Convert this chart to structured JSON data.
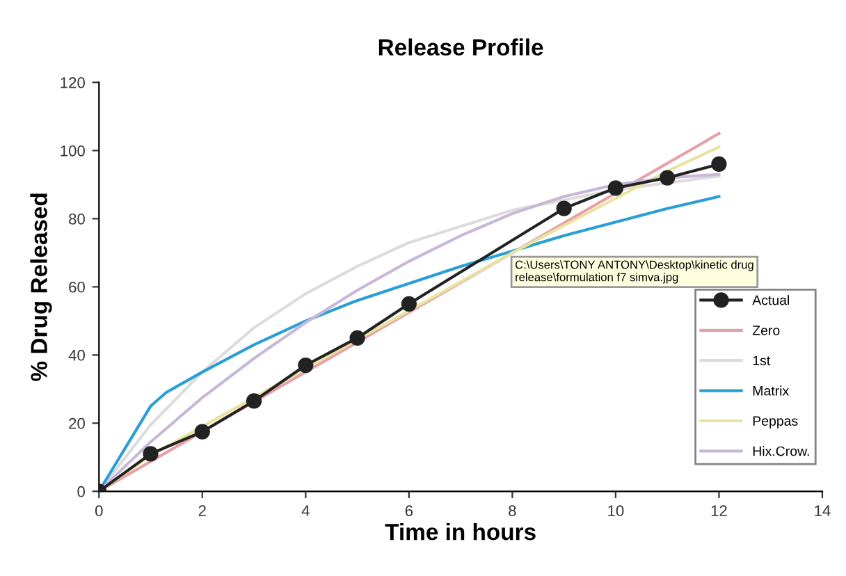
{
  "chart_data": {
    "type": "line",
    "title": "Release Profile",
    "xlabel": "Time in hours",
    "ylabel": "% Drug Released",
    "xlim": [
      0,
      14
    ],
    "xticks": [
      0,
      2,
      4,
      6,
      8,
      10,
      12,
      14
    ],
    "ylim": [
      0,
      120
    ],
    "yticks": [
      0,
      20,
      40,
      60,
      80,
      100,
      120
    ],
    "grid": false,
    "legend": "right",
    "line_style": "solid",
    "annotations": [
      "C:\\Users\\TONY ANTONY\\Desktop\\kinetic drug release\\formulation f7 simva.jpg"
    ],
    "series": [
      {
        "name": "Actual",
        "color": "#222222",
        "marker": "circle",
        "x": [
          0,
          1,
          2,
          3,
          4,
          5,
          6,
          9,
          10,
          11,
          12
        ],
        "values": [
          0,
          11,
          17.5,
          26.5,
          37,
          45,
          55,
          83,
          89,
          92,
          96
        ]
      },
      {
        "name": "Zero",
        "color": "#e8a0a8",
        "marker": "none",
        "x": [
          0,
          4,
          8,
          12
        ],
        "values": [
          0,
          35,
          70,
          105
        ]
      },
      {
        "name": "1st",
        "color": "#dcdcdc",
        "marker": "none",
        "x": [
          0,
          1,
          2,
          3,
          4,
          5,
          6,
          8,
          10,
          12
        ],
        "values": [
          0,
          19.5,
          35,
          48,
          58,
          66,
          73,
          82.5,
          88.5,
          92.5
        ]
      },
      {
        "name": "Matrix",
        "color": "#2a9fd6",
        "marker": "none",
        "x": [
          0,
          1,
          1.3,
          2,
          3,
          4,
          5,
          6,
          7,
          8,
          9,
          10,
          11,
          12
        ],
        "values": [
          0,
          25,
          29,
          35,
          43,
          50,
          56,
          61,
          66,
          70.5,
          75,
          79,
          83,
          86.5
        ]
      },
      {
        "name": "Peppas",
        "color": "#e8e4a0",
        "marker": "none",
        "x": [
          0,
          1,
          2,
          3,
          4,
          5,
          6,
          7,
          8,
          9,
          10,
          11,
          12
        ],
        "values": [
          0,
          10.5,
          19,
          27.5,
          36,
          44.5,
          53,
          61.5,
          70,
          78,
          86,
          94,
          101
        ]
      },
      {
        "name": "Hix.Crow.",
        "color": "#c8b8d8",
        "marker": "none",
        "x": [
          0,
          1,
          2,
          3,
          4,
          5,
          6,
          7,
          8,
          9,
          10,
          11,
          12
        ],
        "values": [
          0,
          14.5,
          27.5,
          39,
          49.5,
          59,
          67.5,
          75,
          81.5,
          86.5,
          90,
          92,
          93
        ]
      }
    ]
  }
}
